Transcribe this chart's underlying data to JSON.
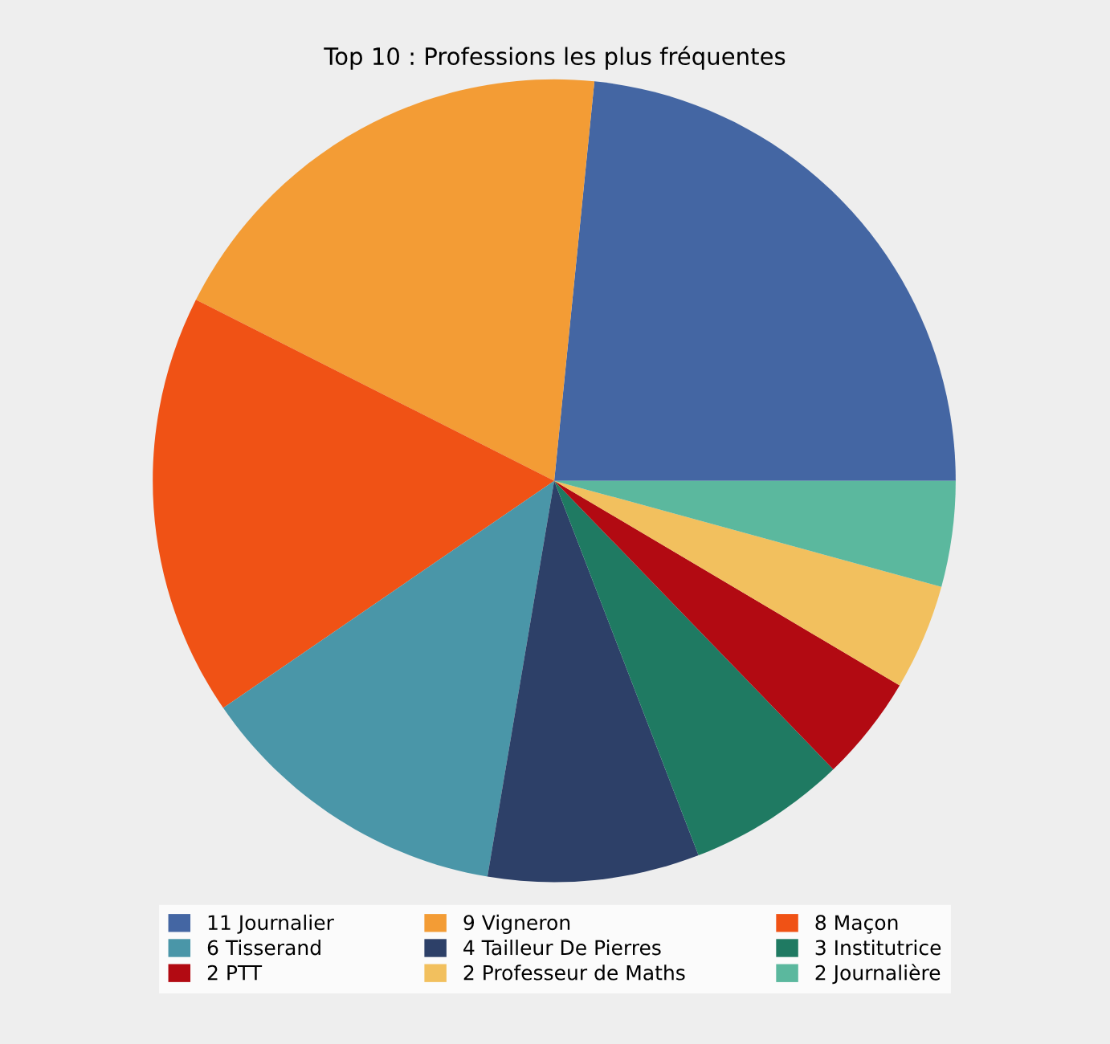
{
  "chart_data": {
    "type": "pie",
    "title": "Top 10 : Professions les plus fréquentes",
    "categories": [
      "11 Journalier",
      "9 Vigneron",
      "8 Maçon",
      "6 Tisserand",
      "4 Tailleur De Pierres",
      "3 Institutrice",
      "2 PTT",
      "2 Professeur de Maths",
      "2 Journalière"
    ],
    "values": [
      11,
      9,
      8,
      6,
      4,
      3,
      2,
      2,
      2
    ],
    "colors": [
      "#4466a3",
      "#f39c35",
      "#f05215",
      "#4a96a8",
      "#2d4068",
      "#1f7a62",
      "#b20a12",
      "#f2c05e",
      "#5bb89e"
    ],
    "legend": "bottom"
  }
}
